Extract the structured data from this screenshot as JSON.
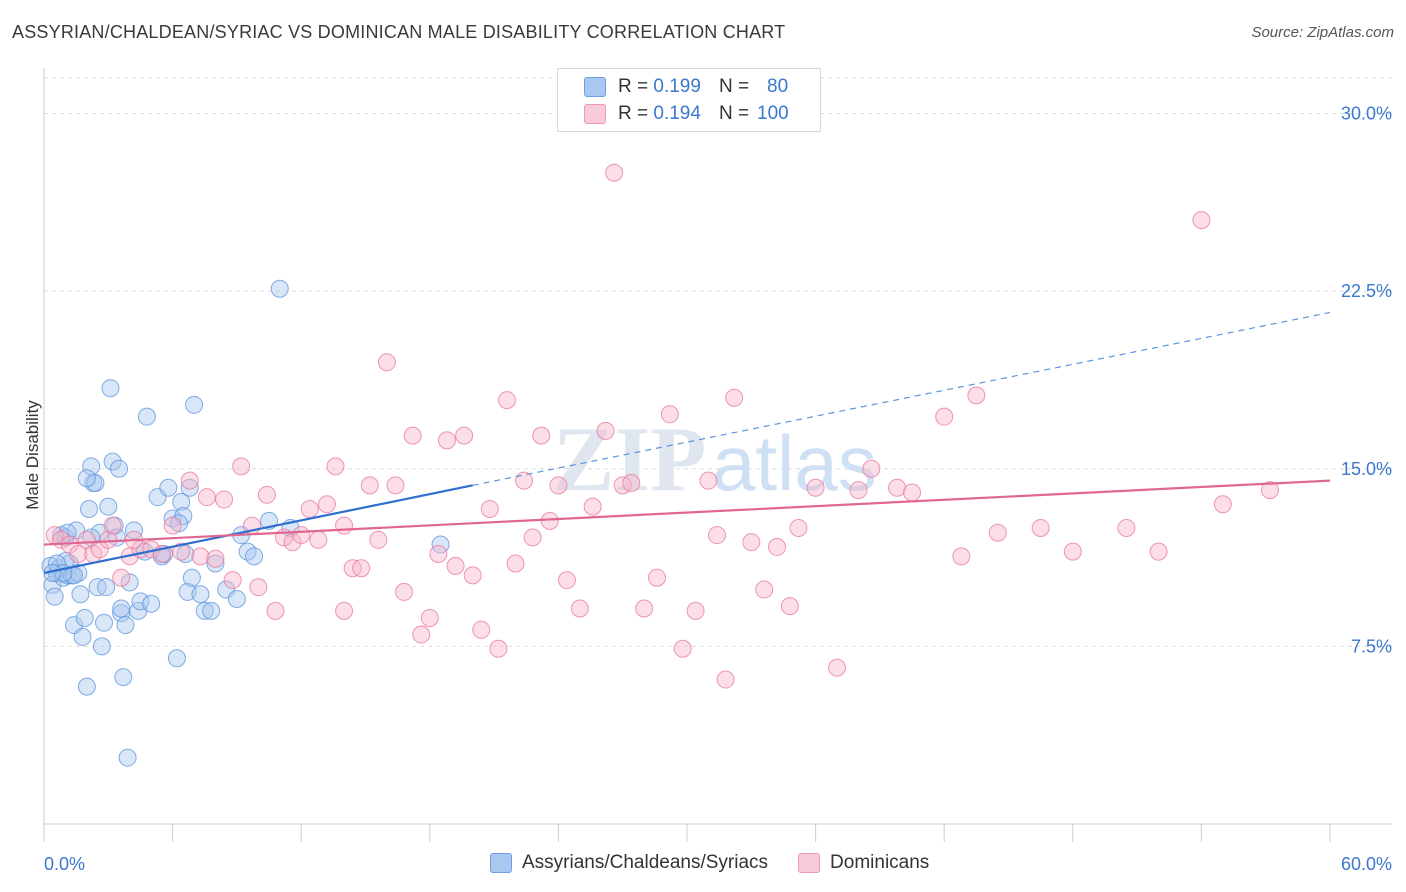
{
  "title": "ASSYRIAN/CHALDEAN/SYRIAC VS DOMINICAN MALE DISABILITY CORRELATION CHART",
  "source": "Source: ZipAtlas.com",
  "watermark": {
    "zip": "ZIP",
    "atlas": "atlas"
  },
  "legend": {
    "rows": [
      {
        "r_label": "R =",
        "r_value": "0.199",
        "n_label": "N =",
        "n_value": "80",
        "color": "#a9c8f0"
      },
      {
        "r_label": "R =",
        "r_value": "0.194",
        "n_label": "N =",
        "n_value": "100",
        "color": "#f6b6c9"
      }
    ]
  },
  "bottom_legend": [
    {
      "label": "Assyrians/Chaldeans/Syriacs",
      "color": "#a9c8f0"
    },
    {
      "label": "Dominicans",
      "color": "#f6b6c9"
    }
  ],
  "chart_data": {
    "type": "scatter",
    "title": "ASSYRIAN/CHALDEAN/SYRIAC VS DOMINICAN MALE DISABILITY CORRELATION CHART",
    "xlabel": "",
    "ylabel": "Male Disability",
    "xlim": [
      0,
      60
    ],
    "ylim": [
      0,
      31.5
    ],
    "x_tick_labels": [
      "0.0%",
      "60.0%"
    ],
    "y_ticks": [
      7.5,
      15.0,
      22.5,
      30.0
    ],
    "y_tick_labels": [
      "7.5%",
      "15.0%",
      "22.5%",
      "30.0%"
    ],
    "grid": true,
    "legend_position": "top-center",
    "series": [
      {
        "name": "Assyrians/Chaldeans/Syriacs",
        "color": "#5b93dc",
        "fill": "#a9c8f0",
        "trend": {
          "x": [
            0,
            20
          ],
          "y": [
            10.6,
            14.3
          ],
          "dashed_to": [
            60,
            21.6
          ]
        },
        "points": [
          [
            0.3,
            10.9
          ],
          [
            0.4,
            10.1
          ],
          [
            0.5,
            9.6
          ],
          [
            0.6,
            10.6
          ],
          [
            0.7,
            10.8
          ],
          [
            0.8,
            12.2
          ],
          [
            0.9,
            10.4
          ],
          [
            1.0,
            12.1
          ],
          [
            1.1,
            10.5
          ],
          [
            1.2,
            11.0
          ],
          [
            1.3,
            10.5
          ],
          [
            1.4,
            8.4
          ],
          [
            1.5,
            12.4
          ],
          [
            1.6,
            10.6
          ],
          [
            1.7,
            9.7
          ],
          [
            1.8,
            7.9
          ],
          [
            1.9,
            8.7
          ],
          [
            2.0,
            5.8
          ],
          [
            2.1,
            13.3
          ],
          [
            2.2,
            15.1
          ],
          [
            2.3,
            14.4
          ],
          [
            2.4,
            14.4
          ],
          [
            2.5,
            10.0
          ],
          [
            2.6,
            12.3
          ],
          [
            2.7,
            7.5
          ],
          [
            2.8,
            8.5
          ],
          [
            2.9,
            10.0
          ],
          [
            3.0,
            13.4
          ],
          [
            3.1,
            18.4
          ],
          [
            3.2,
            15.3
          ],
          [
            3.3,
            12.6
          ],
          [
            3.4,
            12.1
          ],
          [
            3.5,
            15.0
          ],
          [
            3.6,
            8.9
          ],
          [
            3.7,
            6.2
          ],
          [
            3.8,
            8.4
          ],
          [
            3.9,
            2.8
          ],
          [
            4.0,
            10.2
          ],
          [
            4.2,
            12.4
          ],
          [
            4.4,
            9.0
          ],
          [
            4.5,
            9.4
          ],
          [
            4.8,
            17.2
          ],
          [
            5.0,
            9.3
          ],
          [
            5.3,
            13.8
          ],
          [
            5.5,
            11.3
          ],
          [
            5.8,
            14.2
          ],
          [
            6.0,
            12.9
          ],
          [
            6.2,
            7.0
          ],
          [
            6.4,
            13.6
          ],
          [
            6.5,
            13.0
          ],
          [
            6.6,
            11.4
          ],
          [
            6.7,
            9.8
          ],
          [
            6.8,
            14.2
          ],
          [
            6.9,
            10.4
          ],
          [
            7.0,
            17.7
          ],
          [
            7.3,
            9.7
          ],
          [
            7.5,
            9.0
          ],
          [
            7.8,
            9.0
          ],
          [
            8.0,
            11.0
          ],
          [
            8.5,
            9.9
          ],
          [
            9.0,
            9.5
          ],
          [
            9.2,
            12.2
          ],
          [
            9.5,
            11.5
          ],
          [
            9.8,
            11.3
          ],
          [
            1.0,
            11.1
          ],
          [
            0.6,
            11.0
          ],
          [
            2.2,
            12.1
          ],
          [
            1.4,
            10.5
          ],
          [
            0.9,
            10.6
          ],
          [
            3.6,
            9.1
          ],
          [
            4.7,
            11.5
          ],
          [
            11.0,
            22.6
          ],
          [
            10.5,
            12.8
          ],
          [
            11.5,
            12.5
          ],
          [
            18.5,
            11.8
          ],
          [
            2.0,
            14.6
          ],
          [
            5.6,
            11.4
          ],
          [
            6.3,
            12.7
          ],
          [
            0.4,
            10.6
          ],
          [
            1.1,
            12.3
          ]
        ]
      },
      {
        "name": "Dominicans",
        "color": "#e8769c",
        "fill": "#f6b6c9",
        "trend": {
          "x": [
            0,
            60
          ],
          "y": [
            11.8,
            14.5
          ]
        },
        "points": [
          [
            0.5,
            12.2
          ],
          [
            0.8,
            12.0
          ],
          [
            1.2,
            11.8
          ],
          [
            1.6,
            11.4
          ],
          [
            2.0,
            12.0
          ],
          [
            2.3,
            11.4
          ],
          [
            2.6,
            11.6
          ],
          [
            3.0,
            12.0
          ],
          [
            3.2,
            12.6
          ],
          [
            3.6,
            10.4
          ],
          [
            4.0,
            11.3
          ],
          [
            4.5,
            11.6
          ],
          [
            5.0,
            11.6
          ],
          [
            5.5,
            11.4
          ],
          [
            6.0,
            12.6
          ],
          [
            6.4,
            11.5
          ],
          [
            6.8,
            14.5
          ],
          [
            7.3,
            11.3
          ],
          [
            7.6,
            13.8
          ],
          [
            8.0,
            11.2
          ],
          [
            8.4,
            13.7
          ],
          [
            8.8,
            10.3
          ],
          [
            9.2,
            15.1
          ],
          [
            9.7,
            12.6
          ],
          [
            10.0,
            10.0
          ],
          [
            10.4,
            13.9
          ],
          [
            10.8,
            9.0
          ],
          [
            11.2,
            12.1
          ],
          [
            11.6,
            11.9
          ],
          [
            12.0,
            12.2
          ],
          [
            12.4,
            13.3
          ],
          [
            12.8,
            12.0
          ],
          [
            13.2,
            13.5
          ],
          [
            13.6,
            15.1
          ],
          [
            14.0,
            9.0
          ],
          [
            14.4,
            10.8
          ],
          [
            14.8,
            10.8
          ],
          [
            15.2,
            14.3
          ],
          [
            15.6,
            12.0
          ],
          [
            16.0,
            19.5
          ],
          [
            16.4,
            14.3
          ],
          [
            16.8,
            9.8
          ],
          [
            17.2,
            16.4
          ],
          [
            17.6,
            8.0
          ],
          [
            18.0,
            8.7
          ],
          [
            18.4,
            11.4
          ],
          [
            18.8,
            16.2
          ],
          [
            19.2,
            10.9
          ],
          [
            19.6,
            16.4
          ],
          [
            20.0,
            10.5
          ],
          [
            20.4,
            8.2
          ],
          [
            20.8,
            13.3
          ],
          [
            21.2,
            7.4
          ],
          [
            21.6,
            17.9
          ],
          [
            22.0,
            11.0
          ],
          [
            22.4,
            14.5
          ],
          [
            22.8,
            12.1
          ],
          [
            23.2,
            16.4
          ],
          [
            23.6,
            12.8
          ],
          [
            24.0,
            14.3
          ],
          [
            24.4,
            10.3
          ],
          [
            25.0,
            9.1
          ],
          [
            25.6,
            13.4
          ],
          [
            26.2,
            16.6
          ],
          [
            26.6,
            27.5
          ],
          [
            27.0,
            14.3
          ],
          [
            27.4,
            14.4
          ],
          [
            28.0,
            9.1
          ],
          [
            28.6,
            10.4
          ],
          [
            29.2,
            17.3
          ],
          [
            29.8,
            7.4
          ],
          [
            30.4,
            9.0
          ],
          [
            31.0,
            14.5
          ],
          [
            31.4,
            12.2
          ],
          [
            31.8,
            6.1
          ],
          [
            32.2,
            18.0
          ],
          [
            33.0,
            11.9
          ],
          [
            33.6,
            9.9
          ],
          [
            34.2,
            11.7
          ],
          [
            34.8,
            9.2
          ],
          [
            35.2,
            12.5
          ],
          [
            36.0,
            14.2
          ],
          [
            37.0,
            6.6
          ],
          [
            38.0,
            14.1
          ],
          [
            38.6,
            15.0
          ],
          [
            39.8,
            14.2
          ],
          [
            40.5,
            14.0
          ],
          [
            42.0,
            17.2
          ],
          [
            42.8,
            11.3
          ],
          [
            43.5,
            18.1
          ],
          [
            44.5,
            12.3
          ],
          [
            46.5,
            12.5
          ],
          [
            48.0,
            11.5
          ],
          [
            50.5,
            12.5
          ],
          [
            52.0,
            11.5
          ],
          [
            54.0,
            25.5
          ],
          [
            55.0,
            13.5
          ],
          [
            57.2,
            14.1
          ],
          [
            14.0,
            12.6
          ],
          [
            4.2,
            12.0
          ]
        ]
      }
    ]
  }
}
